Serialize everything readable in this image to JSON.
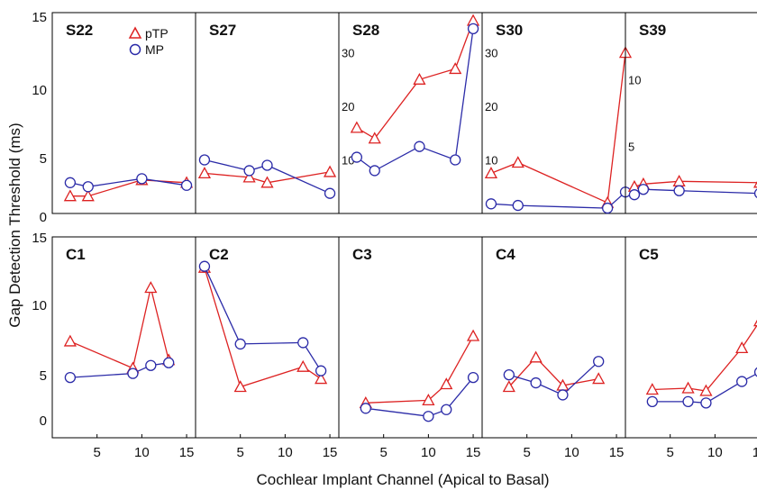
{
  "figure": {
    "xlabel": "Cochlear Implant Channel (Apical to Basal)",
    "ylabel": "Gap Detection Threshold (ms)",
    "legend": [
      {
        "label": "pTP",
        "marker": "triangle",
        "color": "#dd2222"
      },
      {
        "label": "MP",
        "marker": "circle",
        "color": "#2b2ba8"
      }
    ],
    "colors": {
      "pTP": "#dd2222",
      "MP": "#2b2ba8"
    },
    "shared_y_ticks": [
      "0",
      "5",
      "10",
      "15"
    ],
    "shared_y_ticks_bottom": [
      "0",
      "5",
      "10",
      "15"
    ],
    "x_ticks": [
      "5",
      "10",
      "15"
    ]
  },
  "chart_data": [
    {
      "type": "line",
      "title": "S22",
      "xlim": [
        0,
        16
      ],
      "ylim": [
        0,
        15
      ],
      "y_ticks": [],
      "series": [
        {
          "name": "pTP",
          "x": [
            2,
            4,
            10,
            15
          ],
          "y": [
            1.3,
            1.3,
            2.5,
            2.3
          ]
        },
        {
          "name": "MP",
          "x": [
            2,
            4,
            10,
            15
          ],
          "y": [
            2.3,
            2.0,
            2.6,
            2.1
          ]
        }
      ]
    },
    {
      "type": "line",
      "title": "S27",
      "xlim": [
        0,
        16
      ],
      "ylim": [
        0,
        15
      ],
      "y_ticks": [],
      "series": [
        {
          "name": "pTP",
          "x": [
            1,
            6,
            8,
            15
          ],
          "y": [
            3.0,
            2.7,
            2.3,
            3.1
          ]
        },
        {
          "name": "MP",
          "x": [
            1,
            6,
            8,
            15
          ],
          "y": [
            4.0,
            3.2,
            3.6,
            1.5
          ]
        }
      ]
    },
    {
      "type": "line",
      "title": "S28",
      "xlim": [
        0,
        16
      ],
      "ylim": [
        0,
        37.5
      ],
      "y_ticks": [
        10,
        20,
        30
      ],
      "series": [
        {
          "name": "pTP",
          "x": [
            2,
            4,
            9,
            13,
            15
          ],
          "y": [
            16,
            14,
            25,
            27,
            36
          ]
        },
        {
          "name": "MP",
          "x": [
            2,
            4,
            9,
            13,
            15
          ],
          "y": [
            10.5,
            8,
            12.5,
            10,
            34.5
          ]
        }
      ]
    },
    {
      "type": "line",
      "title": "S30",
      "xlim": [
        0,
        16
      ],
      "ylim": [
        0,
        37.5
      ],
      "y_ticks": [
        10,
        20,
        30
      ],
      "series": [
        {
          "name": "pTP",
          "x": [
            1,
            4,
            14,
            16
          ],
          "y": [
            7.5,
            9.5,
            2.0,
            30
          ]
        },
        {
          "name": "MP",
          "x": [
            1,
            4,
            14,
            16
          ],
          "y": [
            1.8,
            1.5,
            1.0,
            4.0
          ]
        }
      ]
    },
    {
      "type": "line",
      "title": "S39",
      "xlim": [
        0,
        16
      ],
      "ylim": [
        0,
        15
      ],
      "y_ticks": [
        5,
        10
      ],
      "series": [
        {
          "name": "pTP",
          "x": [
            1,
            2,
            6,
            15
          ],
          "y": [
            2.0,
            2.2,
            2.4,
            2.3
          ]
        },
        {
          "name": "MP",
          "x": [
            1,
            2,
            6,
            15
          ],
          "y": [
            1.4,
            1.8,
            1.7,
            1.5
          ]
        }
      ]
    },
    {
      "type": "line",
      "title": "C1",
      "xlim": [
        0,
        16
      ],
      "ylim": [
        0,
        15
      ],
      "y_ticks": [],
      "series": [
        {
          "name": "pTP",
          "x": [
            2,
            9,
            11,
            13
          ],
          "y": [
            7.2,
            5.2,
            11.2,
            5.8
          ]
        },
        {
          "name": "MP",
          "x": [
            2,
            9,
            11,
            13
          ],
          "y": [
            4.5,
            4.8,
            5.4,
            5.6
          ]
        }
      ]
    },
    {
      "type": "line",
      "title": "C2",
      "xlim": [
        0,
        16
      ],
      "ylim": [
        0,
        15
      ],
      "y_ticks": [],
      "series": [
        {
          "name": "pTP",
          "x": [
            1,
            5,
            12,
            14
          ],
          "y": [
            12.7,
            3.8,
            5.3,
            4.4
          ]
        },
        {
          "name": "MP",
          "x": [
            1,
            5,
            12,
            14
          ],
          "y": [
            12.8,
            7.0,
            7.1,
            5.0
          ]
        }
      ]
    },
    {
      "type": "line",
      "title": "C3",
      "xlim": [
        0,
        16
      ],
      "ylim": [
        0,
        15
      ],
      "y_ticks": [],
      "series": [
        {
          "name": "pTP",
          "x": [
            3,
            10,
            12,
            15
          ],
          "y": [
            2.6,
            2.8,
            4.0,
            7.6
          ]
        },
        {
          "name": "MP",
          "x": [
            3,
            10,
            12,
            15
          ],
          "y": [
            2.2,
            1.6,
            2.1,
            4.5
          ]
        }
      ]
    },
    {
      "type": "line",
      "title": "C4",
      "xlim": [
        0,
        16
      ],
      "ylim": [
        0,
        15
      ],
      "y_ticks": [],
      "series": [
        {
          "name": "pTP",
          "x": [
            3,
            6,
            9,
            13
          ],
          "y": [
            3.8,
            6.0,
            3.9,
            4.4
          ]
        },
        {
          "name": "MP",
          "x": [
            3,
            6,
            9,
            13
          ],
          "y": [
            4.7,
            4.1,
            3.2,
            5.7
          ]
        }
      ]
    },
    {
      "type": "line",
      "title": "C5",
      "xlim": [
        0,
        16
      ],
      "ylim": [
        0,
        15
      ],
      "y_ticks": [],
      "series": [
        {
          "name": "pTP",
          "x": [
            3,
            7,
            9,
            13,
            15
          ],
          "y": [
            3.6,
            3.7,
            3.5,
            6.7,
            8.7
          ]
        },
        {
          "name": "MP",
          "x": [
            3,
            7,
            9,
            13,
            15
          ],
          "y": [
            2.7,
            2.7,
            2.6,
            4.2,
            4.9
          ]
        }
      ]
    }
  ]
}
